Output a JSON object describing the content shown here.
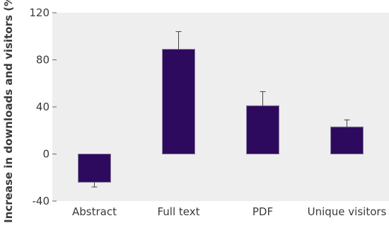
{
  "chart_data": {
    "type": "bar",
    "title": "",
    "xlabel": "",
    "ylabel": "Increase in downloads and visitors (%)",
    "categories": [
      "Abstract",
      "Full text",
      "PDF",
      "Unique visitors"
    ],
    "values": [
      -24,
      89,
      41,
      23
    ],
    "error_upper": [
      -28,
      104,
      53,
      29
    ],
    "ylim": [
      -40,
      120
    ],
    "yticks": [
      -40,
      0,
      40,
      80,
      120
    ],
    "ytick_labels": [
      "-40",
      "0",
      "40",
      "80",
      "120"
    ],
    "grid": false,
    "legend": "none",
    "bar_color": "#2e0a5e",
    "plot_background": "#efeeee"
  }
}
